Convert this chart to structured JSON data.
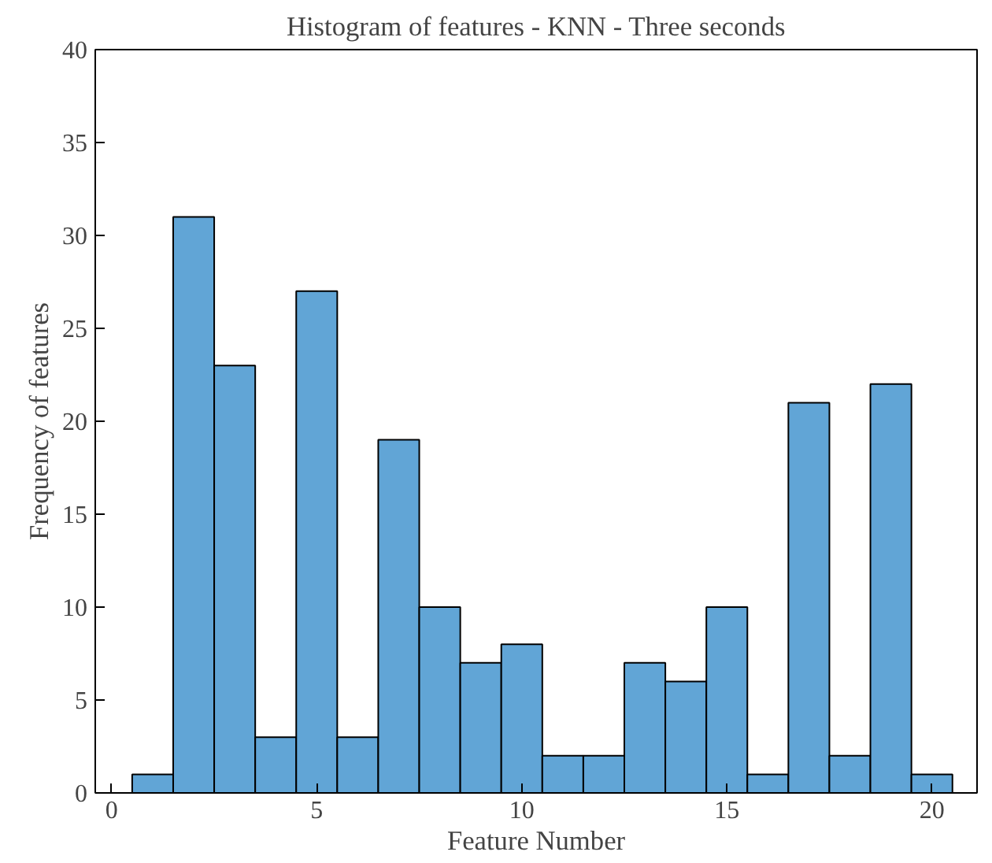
{
  "chart_data": {
    "type": "histogram",
    "title": "Histogram of features - KNN - Three seconds",
    "xlabel": "Feature Number",
    "ylabel": "Frequency of features",
    "bins": [
      0.5,
      1.5,
      2.5,
      3.5,
      4.5,
      5.5,
      6.5,
      7.5,
      8.5,
      9.5,
      10.5,
      11.5,
      12.5,
      13.5,
      14.5,
      15.5,
      16.5,
      17.5,
      18.5,
      19.5,
      20.5
    ],
    "values": [
      1,
      31,
      23,
      3,
      27,
      3,
      19,
      10,
      7,
      8,
      2,
      2,
      7,
      6,
      10,
      1,
      21,
      2,
      22,
      1
    ],
    "color": "#61a5d6",
    "xlim": [
      -0.4,
      21.1
    ],
    "ylim": [
      0,
      40
    ],
    "xticks": [
      0,
      5,
      10,
      15,
      20
    ],
    "yticks": [
      0,
      5,
      10,
      15,
      20,
      25,
      30,
      35,
      40
    ],
    "grid": false
  }
}
